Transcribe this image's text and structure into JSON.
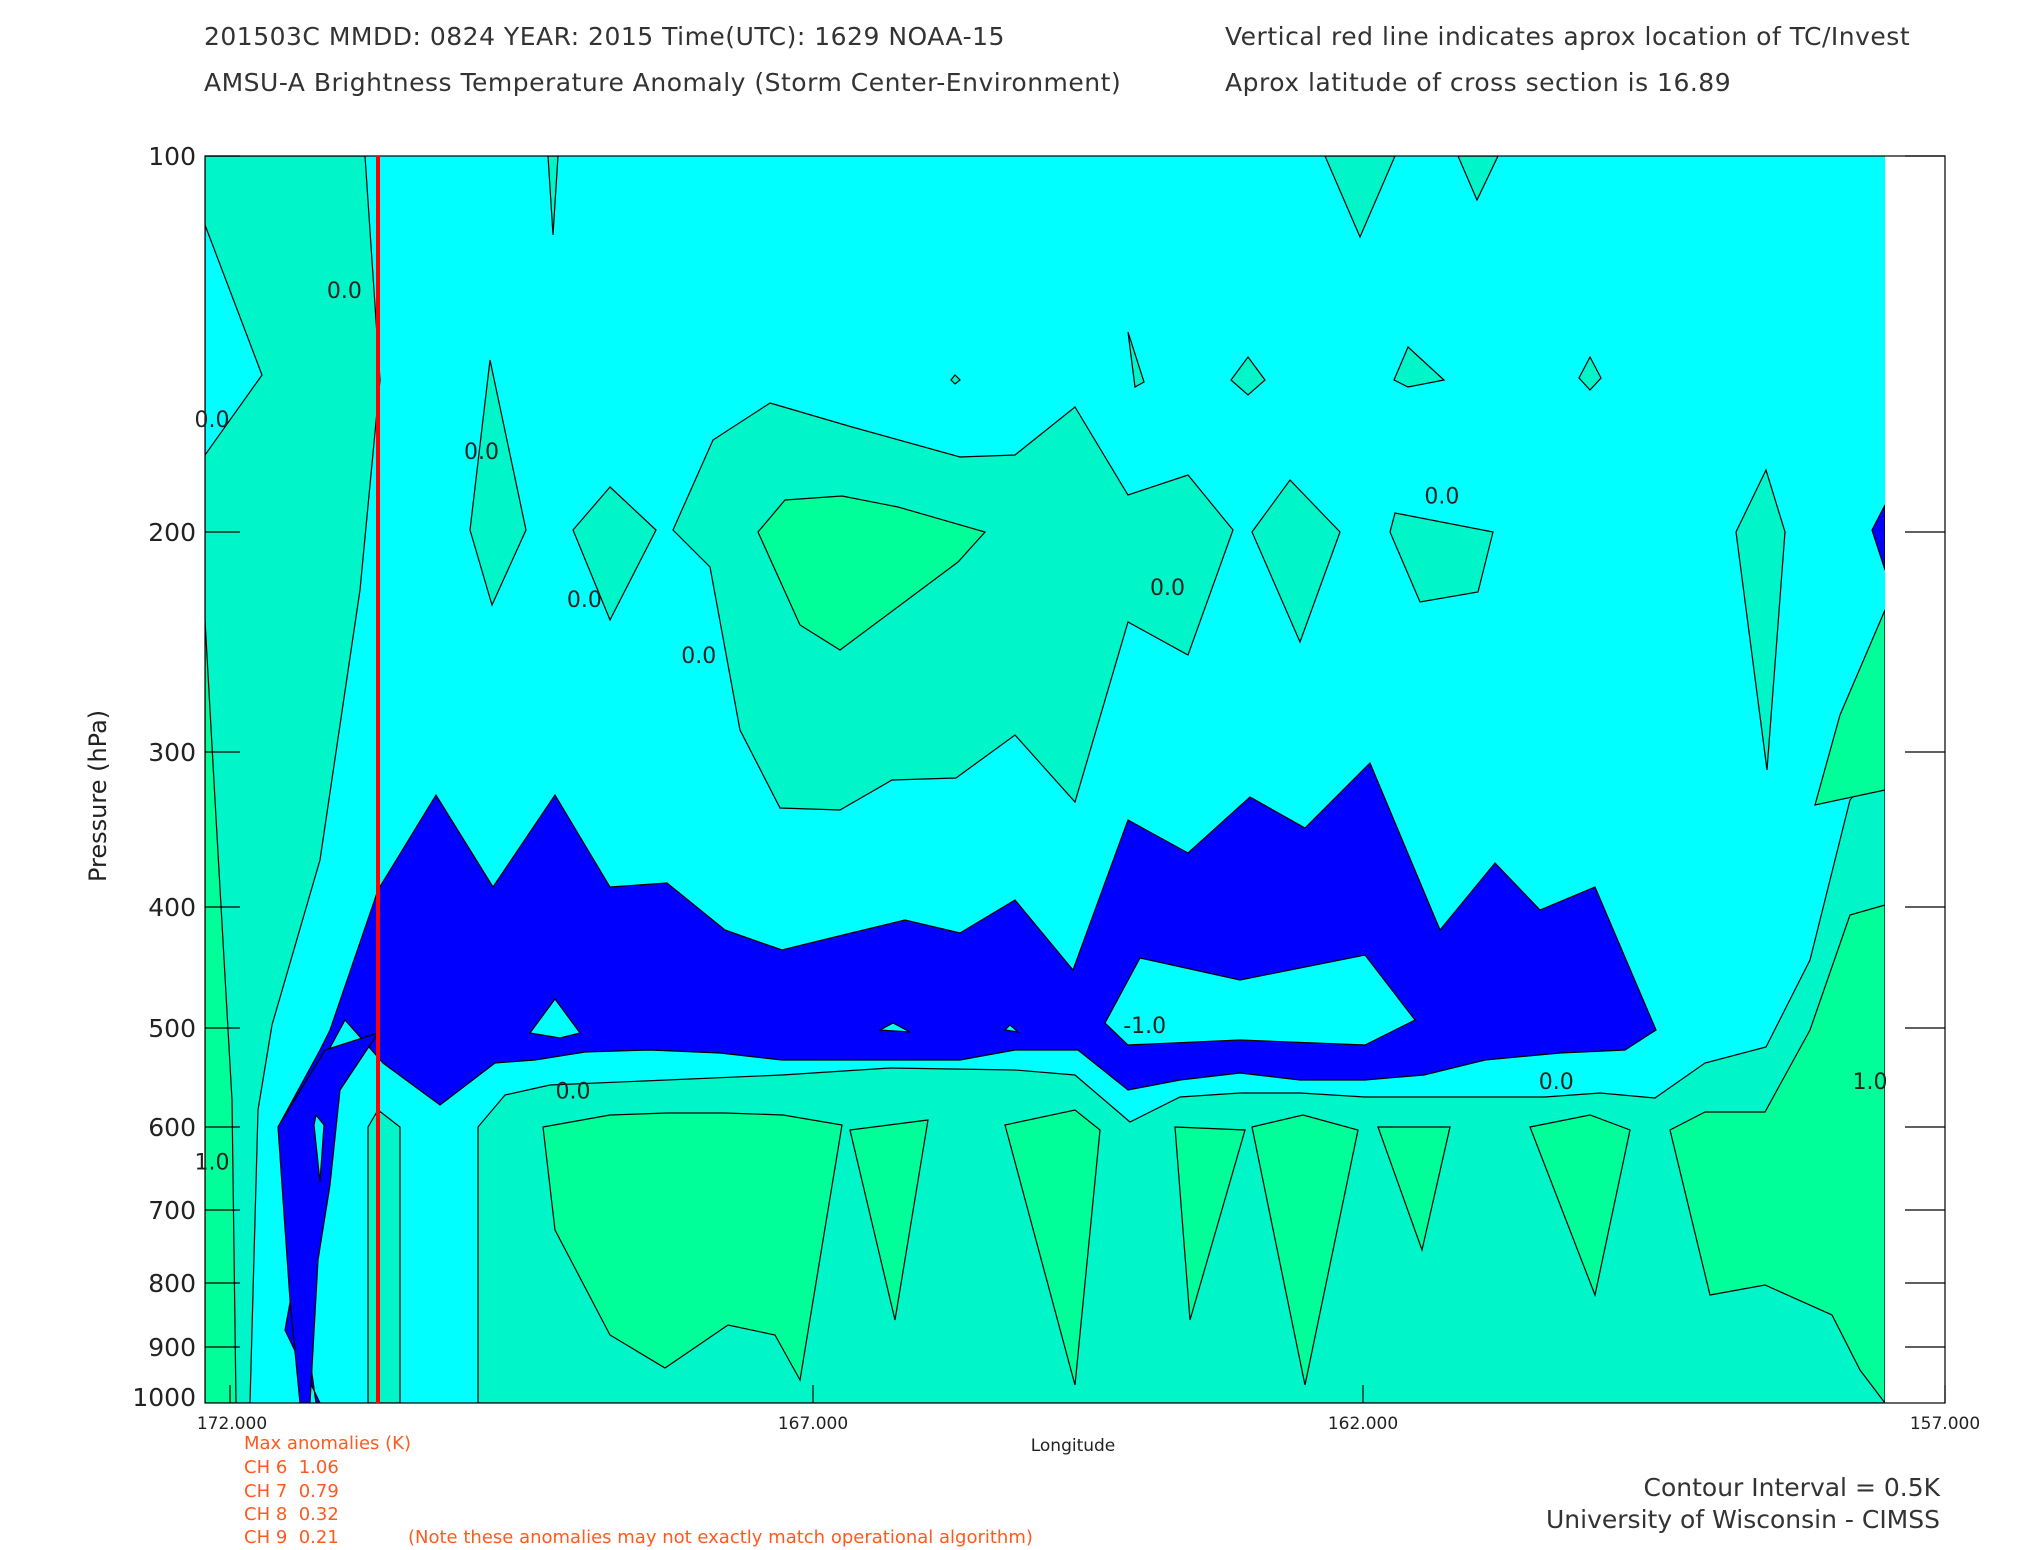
{
  "header": {
    "line1_left": "201503C  MMDD: 0824 YEAR: 2015 Time(UTC): 1629 NOAA-15",
    "line2_left": "AMSU-A Brightness Temperature Anomaly (Storm Center-Environment)",
    "line1_right": "Vertical red line indicates aprox location of TC/Invest",
    "line2_right": "Aprox latitude of cross section is 16.89"
  },
  "colors": {
    "background_fill": "#00ffff",
    "level_0_fill": "#00f5c8",
    "level_0_5_fill": "#00ff98",
    "negative_fill": "#0000ff",
    "storm_line": "#ff0000",
    "anomaly_text": "#ff5a1e"
  },
  "chart_data": {
    "type": "contour",
    "title": "AMSU-A Brightness Temperature Anomaly (Storm Center-Environment)",
    "xlabel": "Longitude",
    "ylabel": "Pressure (hPa)",
    "xlim": [
      172.8,
      157.0
    ],
    "ylim": [
      1000,
      100
    ],
    "y_scale": "log",
    "x_ticks": [
      "172.000",
      "167.000",
      "162.000",
      "157.000"
    ],
    "x_tick_values": [
      172.0,
      167.0,
      162.0,
      157.0
    ],
    "y_ticks": [
      "100",
      "200",
      "300",
      "400",
      "500",
      "600",
      "700",
      "800",
      "900",
      "1000"
    ],
    "y_tick_values": [
      100,
      200,
      300,
      400,
      500,
      600,
      700,
      800,
      900,
      1000
    ],
    "storm_longitude": 171.0,
    "contour_interval": "0.5K",
    "contour_labels": [
      {
        "text": "0.0",
        "lon": 171.0,
        "p": 130
      },
      {
        "text": "0.0",
        "lon": 172.6,
        "p": 165
      },
      {
        "text": "0.0",
        "lon": 169.8,
        "p": 175
      },
      {
        "text": "0.0",
        "lon": 168.9,
        "p": 230
      },
      {
        "text": "0.0",
        "lon": 167.9,
        "p": 255
      },
      {
        "text": "0.0",
        "lon": 161.4,
        "p": 190
      },
      {
        "text": "0.0",
        "lon": 163.8,
        "p": 225
      },
      {
        "text": "-1.0",
        "lon": 164.0,
        "p": 505
      },
      {
        "text": "0.0",
        "lon": 169.0,
        "p": 570
      },
      {
        "text": "0.0",
        "lon": 160.4,
        "p": 560
      },
      {
        "text": "1.0",
        "lon": 157.3,
        "p": 560
      },
      {
        "text": "1.0",
        "lon": 172.8,
        "p": 650
      }
    ],
    "legend": "none",
    "grid": false
  },
  "anomalies": {
    "title": "Max anomalies (K)",
    "rows": [
      {
        "channel": "CH 6",
        "value": "1.06"
      },
      {
        "channel": "CH 7",
        "value": "0.79"
      },
      {
        "channel": "CH 8",
        "value": "0.32"
      },
      {
        "channel": "CH 9",
        "value": "0.21"
      }
    ],
    "note": "(Note these anomalies may not exactly match operational algorithm)"
  },
  "footer": {
    "interval": "Contour Interval = 0.5K",
    "credit": "University of Wisconsin - CIMSS"
  }
}
